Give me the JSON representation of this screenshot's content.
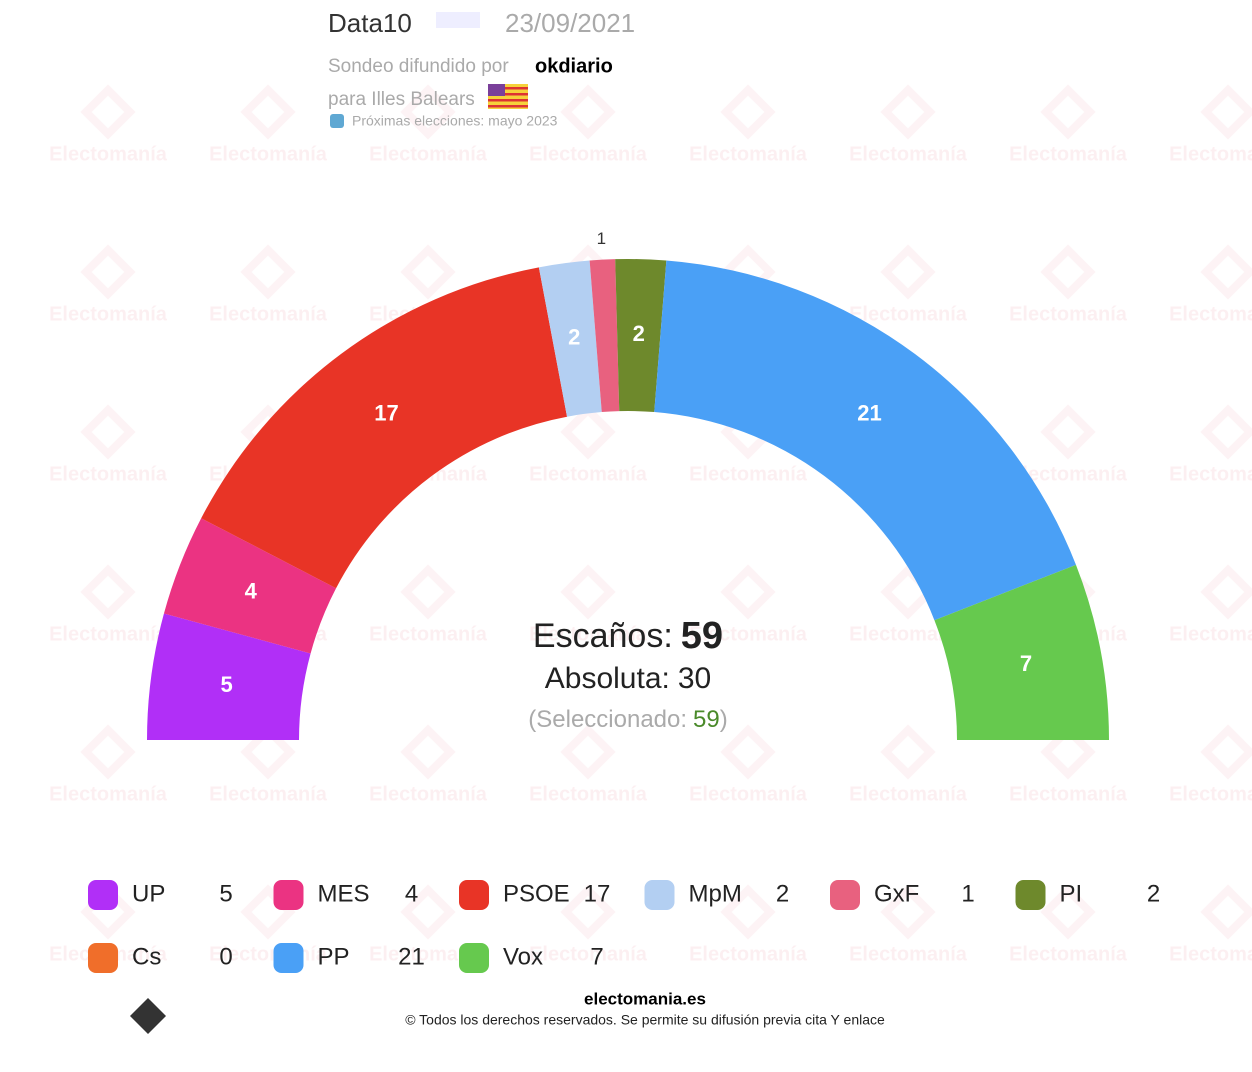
{
  "chart_data": {
    "type": "parliament",
    "pollster": "Data10",
    "date": "23/09/2021",
    "published_by_label": "Sondeo difundido por",
    "published_by": "okdiario",
    "region_label": "para Illes Balears",
    "next_elections": "Próximas elecciones: mayo 2023",
    "watermark": "Electomanía",
    "series": [
      {
        "name": "UP",
        "color": "#b12ff7",
        "values": [
          5
        ]
      },
      {
        "name": "MES",
        "color": "#eb3382",
        "values": [
          4
        ]
      },
      {
        "name": "PSOE",
        "color": "#e83426",
        "values": [
          17
        ]
      },
      {
        "name": "MpM",
        "color": "#b3cff2",
        "values": [
          2
        ]
      },
      {
        "name": "GxF",
        "color": "#e8617f",
        "values": [
          1
        ]
      },
      {
        "name": "PI",
        "color": "#6e892c",
        "values": [
          2
        ]
      },
      {
        "name": "Cs",
        "color": "#f06e2a",
        "values": [
          0
        ]
      },
      {
        "name": "PP",
        "color": "#4aa0f6",
        "values": [
          21
        ]
      },
      {
        "name": "Vox",
        "color": "#66c94e",
        "values": [
          7
        ]
      }
    ],
    "seats_label": "Escaños:",
    "seats": 59,
    "majority_label": "Absoluta:",
    "majority": 30,
    "selected_open": "(Seleccionado:",
    "selected": 59,
    "selected_close": ")",
    "footer_site": "electomania.es",
    "footer_rights": "© Todos los derechos reservados. Se permite su difusión previa cita Y enlace"
  }
}
